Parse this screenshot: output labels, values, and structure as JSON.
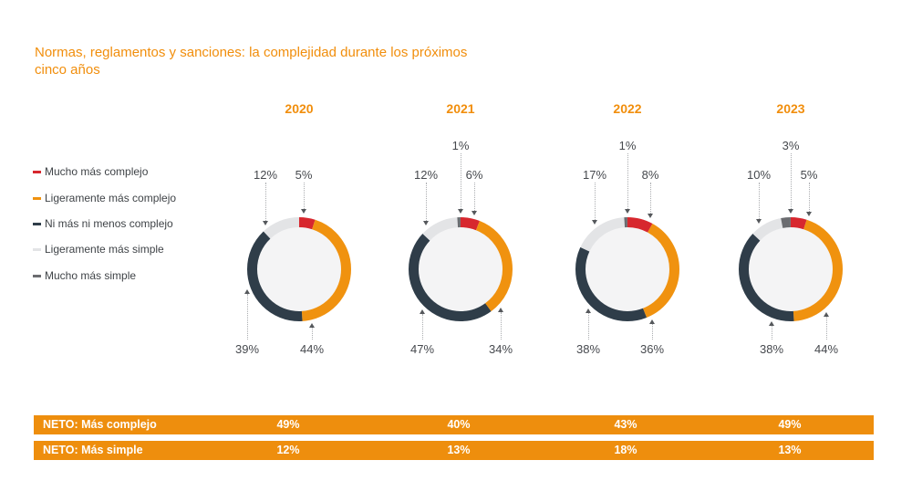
{
  "title": "Normas, reglamentos y sanciones: la complejidad durante los próximos cinco años",
  "unit": "%",
  "colors": {
    "red": "#D7272E",
    "orange": "#F0920F",
    "navy": "#2F3D49",
    "light_gray": "#E3E4E6",
    "mid_gray": "#6B6C70",
    "accent_orange": "#F18E0C",
    "bar_orange": "#EE8E0D",
    "donut_inner_fill": "#F4F4F5",
    "label_text": "#46494E",
    "leader_dotted": "#ABADB0"
  },
  "chart_data": {
    "type": "pie",
    "subtype": "donut-small-multiples",
    "title": "Normas, reglamentos y sanciones: la complejidad durante los próximos cinco años",
    "unit": "%",
    "legend_position": "left",
    "categories": [
      "Mucho más complejo",
      "Ligeramente más complejo",
      "Ni más ni menos complejo",
      "Ligeramente más simple",
      "Mucho más simple"
    ],
    "category_colors": [
      "#D7272E",
      "#F0920F",
      "#2F3D49",
      "#E3E4E6",
      "#6B6C70"
    ],
    "years": [
      "2020",
      "2021",
      "2022",
      "2023"
    ],
    "groups": [
      {
        "year": "2020",
        "values": [
          5,
          44,
          39,
          12,
          0
        ]
      },
      {
        "year": "2021",
        "values": [
          6,
          34,
          47,
          12,
          1
        ]
      },
      {
        "year": "2022",
        "values": [
          8,
          36,
          38,
          17,
          1
        ]
      },
      {
        "year": "2023",
        "values": [
          5,
          44,
          38,
          10,
          3
        ]
      }
    ],
    "net_rows": [
      {
        "label": "NETO: Más complejo",
        "values": [
          49,
          40,
          43,
          49
        ]
      },
      {
        "label": "NETO: Más simple",
        "values": [
          12,
          13,
          18,
          13
        ]
      }
    ]
  }
}
